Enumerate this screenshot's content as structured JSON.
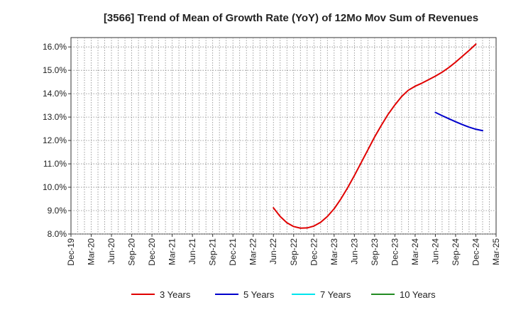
{
  "chart_data": {
    "type": "line",
    "title": "[3566]  Trend of Mean of Growth Rate (YoY) of 12Mo Mov Sum of Revenues",
    "xlabel": "",
    "ylabel": "",
    "ylim": [
      8.0,
      16.4
    ],
    "y_ticks": [
      "8.0%",
      "9.0%",
      "10.0%",
      "11.0%",
      "12.0%",
      "13.0%",
      "14.0%",
      "15.0%",
      "16.0%"
    ],
    "y_tick_values": [
      8,
      9,
      10,
      11,
      12,
      13,
      14,
      15,
      16
    ],
    "x_ticks": [
      "Dec-19",
      "Mar-20",
      "Jun-20",
      "Sep-20",
      "Dec-20",
      "Mar-21",
      "Jun-21",
      "Sep-21",
      "Dec-21",
      "Mar-22",
      "Jun-22",
      "Sep-22",
      "Dec-22",
      "Mar-23",
      "Jun-23",
      "Sep-23",
      "Dec-23",
      "Mar-24",
      "Jun-24",
      "Sep-24",
      "Dec-24",
      "Mar-25"
    ],
    "grid": true,
    "legend_position": "bottom",
    "series": [
      {
        "name": "3 Years",
        "color": "#e00000",
        "start_month_index": 30,
        "values": [
          9.12,
          8.75,
          8.48,
          8.32,
          8.25,
          8.26,
          8.34,
          8.5,
          8.75,
          9.08,
          9.5,
          9.98,
          10.5,
          11.05,
          11.6,
          12.15,
          12.65,
          13.12,
          13.52,
          13.88,
          14.15,
          14.32,
          14.45,
          14.6,
          14.75,
          14.92,
          15.12,
          15.35,
          15.6,
          15.85,
          16.12
        ]
      },
      {
        "name": "5 Years",
        "color": "#0000cc",
        "start_month_index": 54,
        "values": [
          13.2,
          13.06,
          12.93,
          12.8,
          12.68,
          12.57,
          12.48,
          12.42
        ]
      },
      {
        "name": "7 Years",
        "color": "#00e5ee",
        "start_month_index": 0,
        "values": []
      },
      {
        "name": "10 Years",
        "color": "#228b22",
        "start_month_index": 0,
        "values": []
      }
    ]
  }
}
